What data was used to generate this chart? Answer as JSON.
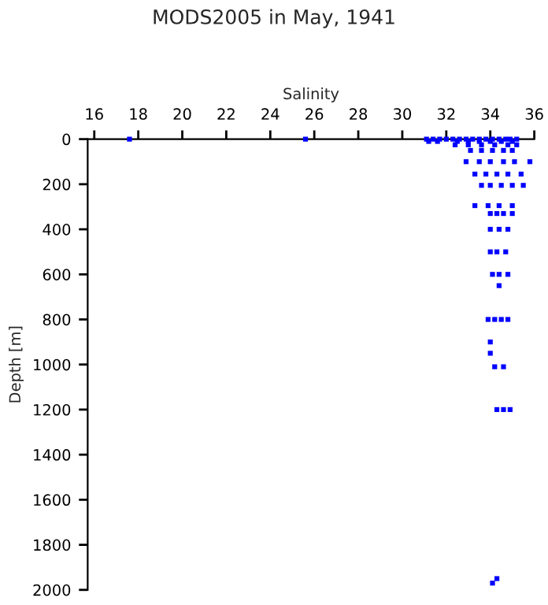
{
  "chart_data": {
    "type": "scatter",
    "title": "MODS2005 in May, 1941",
    "xlabel": "Salinity",
    "ylabel": "Depth [m]",
    "xlim": [
      15.7,
      36
    ],
    "xticks": [
      16,
      18,
      20,
      22,
      24,
      26,
      28,
      30,
      32,
      34,
      36
    ],
    "ylim": [
      2000,
      0
    ],
    "yticks": [
      0,
      200,
      400,
      600,
      800,
      1000,
      1200,
      1400,
      1600,
      1800,
      2000
    ],
    "marker": "square",
    "grid": false,
    "series": [
      {
        "color": "#0000ff",
        "x": [
          17.6,
          25.6,
          31.1,
          31.4,
          31.7,
          32.0,
          32.3,
          32.6,
          32.9,
          33.2,
          33.5,
          33.8,
          34.1,
          34.4,
          34.7,
          34.9,
          35.2,
          31.2,
          31.6,
          32.5,
          33.0,
          33.5,
          34.0,
          34.5,
          35.0,
          32.4,
          33.0,
          33.6,
          34.2,
          34.8,
          35.2,
          33.1,
          33.6,
          34.1,
          34.6,
          35.0,
          32.9,
          33.5,
          34.0,
          34.6,
          35.1,
          35.8,
          33.3,
          33.8,
          34.3,
          34.8,
          35.4,
          33.6,
          34.0,
          34.5,
          35.0,
          35.5,
          33.3,
          33.9,
          34.4,
          35.0,
          34.0,
          34.3,
          34.6,
          35.0,
          34.0,
          34.4,
          34.8,
          34.0,
          34.3,
          34.7,
          34.1,
          34.4,
          34.8,
          34.4,
          33.9,
          34.2,
          34.5,
          34.8,
          34.0,
          34.0,
          34.2,
          34.6,
          34.3,
          34.6,
          34.9,
          34.3,
          34.1
        ],
        "values": [
          0,
          0,
          0,
          0,
          0,
          0,
          0,
          0,
          0,
          0,
          0,
          0,
          0,
          0,
          0,
          0,
          0,
          10,
          10,
          10,
          10,
          10,
          10,
          10,
          10,
          25,
          25,
          25,
          25,
          25,
          25,
          50,
          50,
          50,
          50,
          50,
          100,
          100,
          100,
          100,
          100,
          100,
          155,
          155,
          155,
          155,
          155,
          205,
          205,
          205,
          205,
          205,
          295,
          295,
          295,
          295,
          330,
          330,
          330,
          330,
          400,
          400,
          400,
          500,
          500,
          500,
          600,
          600,
          600,
          650,
          800,
          800,
          800,
          800,
          900,
          950,
          1010,
          1010,
          1200,
          1200,
          1200,
          1950,
          1970
        ]
      }
    ]
  }
}
